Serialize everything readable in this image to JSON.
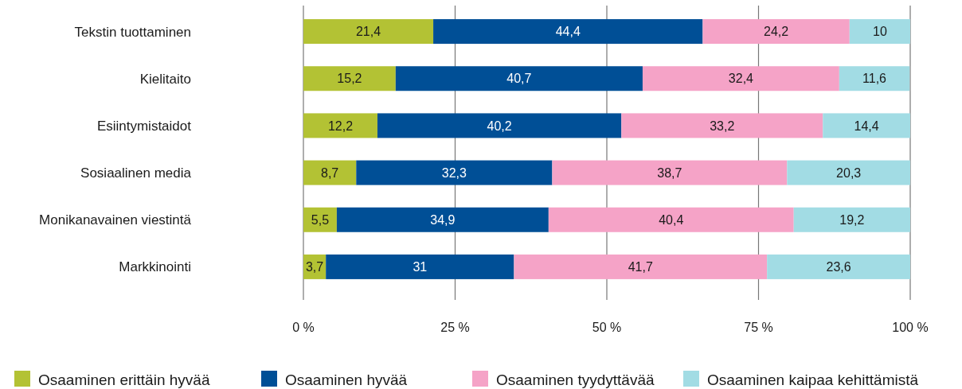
{
  "chart_data": {
    "type": "bar",
    "orientation": "horizontal",
    "stacked": true,
    "categories": [
      "Tekstin tuottaminen",
      "Kielitaito",
      "Esiintymistaidot",
      "Sosiaalinen media",
      "Monikanavainen viestintä",
      "Markkinointi"
    ],
    "series": [
      {
        "name": "Osaaminen erittäin hyvää",
        "color": "#b3c234",
        "values": [
          21.4,
          15.2,
          12.2,
          8.7,
          5.5,
          3.7
        ],
        "value_labels": [
          "21,4",
          "15,2",
          "12,2",
          "8,7",
          "5,5",
          "3,7"
        ]
      },
      {
        "name": "Osaaminen hyvää",
        "color": "#004f96",
        "values": [
          44.4,
          40.7,
          40.2,
          32.3,
          34.9,
          31
        ],
        "value_labels": [
          "44,4",
          "40,7",
          "40,2",
          "32,3",
          "34,9",
          "31"
        ]
      },
      {
        "name": "Osaaminen tyydyttävää",
        "color": "#f5a3c7",
        "values": [
          24.2,
          32.4,
          33.2,
          38.7,
          40.4,
          41.7
        ],
        "value_labels": [
          "24,2",
          "32,4",
          "33,2",
          "38,7",
          "40,4",
          "41,7"
        ]
      },
      {
        "name": "Osaaminen kaipaa kehittämistä",
        "color": "#a2dce4",
        "values": [
          10,
          11.6,
          14.4,
          20.3,
          19.2,
          23.6
        ],
        "value_labels": [
          "10",
          "11,6",
          "14,4",
          "20,3",
          "19,2",
          "23,6"
        ]
      }
    ],
    "xlim": [
      0,
      100
    ],
    "xticks": [
      {
        "value": 0,
        "label": "0 %"
      },
      {
        "value": 25,
        "label": "25 %"
      },
      {
        "value": 50,
        "label": "50 %"
      },
      {
        "value": 75,
        "label": "75 %"
      },
      {
        "value": 100,
        "label": "100 %"
      }
    ],
    "grid": "x",
    "legend": "bottom"
  }
}
